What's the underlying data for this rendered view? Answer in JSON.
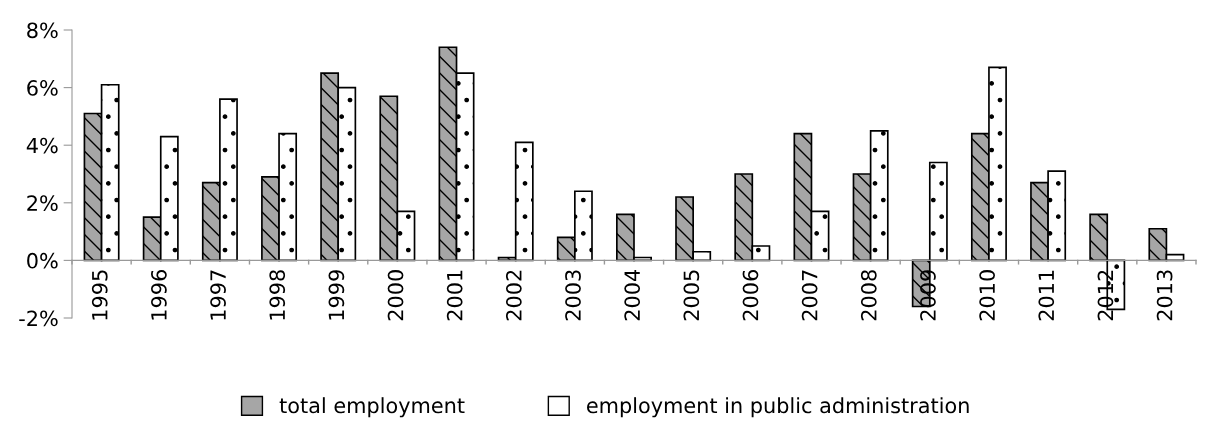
{
  "chart_data": {
    "type": "bar",
    "categories": [
      "1995",
      "1996",
      "1997",
      "1998",
      "1999",
      "2000",
      "2001",
      "2002",
      "2003",
      "2004",
      "2005",
      "2006",
      "2007",
      "2008",
      "2009",
      "2010",
      "2011",
      "2012",
      "2013"
    ],
    "series": [
      {
        "name": "total employment",
        "color": "#a6a6a6",
        "values": [
          5.1,
          1.5,
          2.7,
          2.9,
          6.5,
          5.7,
          7.4,
          0.1,
          0.8,
          1.6,
          2.2,
          3.0,
          4.4,
          3.0,
          -1.6,
          4.4,
          2.7,
          1.6,
          1.1
        ]
      },
      {
        "name": "employment in public administration",
        "color": "#ffffff",
        "values": [
          6.1,
          4.3,
          5.6,
          4.4,
          6.0,
          1.7,
          6.5,
          4.1,
          2.4,
          0.1,
          0.3,
          0.5,
          1.7,
          4.5,
          3.4,
          6.7,
          3.1,
          -1.7,
          0.2
        ]
      }
    ],
    "ylim": [
      -2,
      8
    ],
    "yticks": [
      {
        "value": -2,
        "label": "-2%"
      },
      {
        "value": 0,
        "label": "0%"
      },
      {
        "value": 2,
        "label": "2%"
      },
      {
        "value": 4,
        "label": "4%"
      },
      {
        "value": 6,
        "label": "6%"
      },
      {
        "value": 8,
        "label": "8%"
      }
    ],
    "grid": false,
    "legend": "bottom"
  }
}
